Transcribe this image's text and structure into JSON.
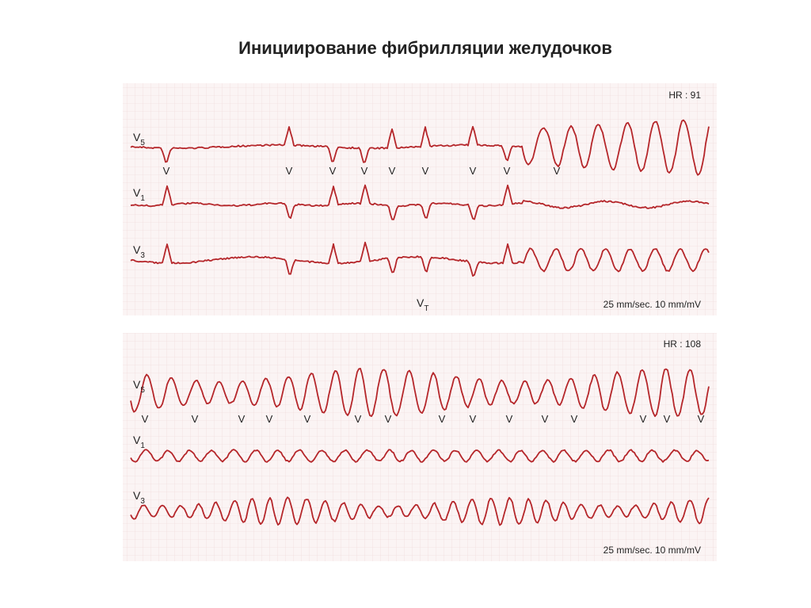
{
  "header": {
    "title": "Инициирование фибрилляции желудочков"
  },
  "panels": [
    {
      "hr": "HR : 91",
      "leads": [
        {
          "main": "V",
          "sub": "5"
        },
        {
          "main": "V",
          "sub": "1"
        },
        {
          "main": "V",
          "sub": "3"
        }
      ],
      "markers": [
        "V",
        "V",
        "V",
        "V",
        "V",
        "V",
        "V",
        "V",
        "V"
      ],
      "annotation": {
        "main": "V",
        "sub": "T"
      },
      "scale": "25 mm/sec. 10 mm/mV"
    },
    {
      "hr": "HR : 108",
      "leads": [
        {
          "main": "V",
          "sub": "5"
        },
        {
          "main": "V",
          "sub": "1"
        },
        {
          "main": "V",
          "sub": "3"
        }
      ],
      "markers": [
        "V",
        "V",
        "V",
        "V",
        "V",
        "V",
        "V",
        "V",
        "V",
        "V",
        "V",
        "V",
        "V",
        "V",
        "V"
      ],
      "scale": "25 mm/sec. 10 mm/mV"
    }
  ]
}
